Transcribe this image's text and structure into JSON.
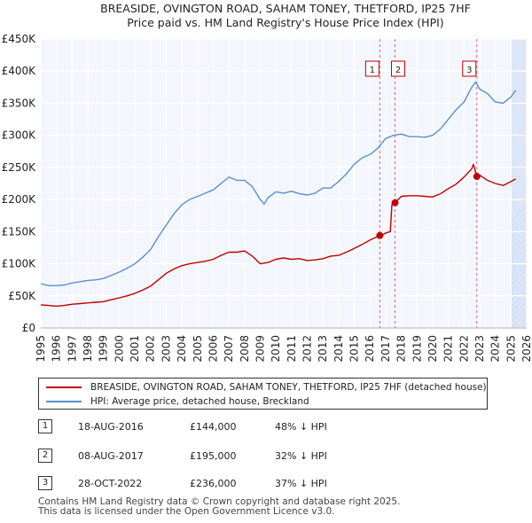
{
  "chart_data": {
    "type": "line",
    "title": "BREASIDE, OVINGTON ROAD, SAHAM TONEY, THETFORD, IP25 7HF",
    "subtitle": "Price paid vs. HM Land Registry's House Price Index (HPI)",
    "xlabel": "",
    "ylabel": "",
    "xlim": [
      1995,
      2026
    ],
    "ylim": [
      0,
      450000
    ],
    "x_ticks": [
      "1995",
      "1996",
      "1997",
      "1998",
      "1999",
      "2000",
      "2001",
      "2002",
      "2003",
      "2004",
      "2005",
      "2006",
      "2007",
      "2008",
      "2009",
      "2010",
      "2011",
      "2012",
      "2013",
      "2014",
      "2015",
      "2016",
      "2017",
      "2018",
      "2019",
      "2020",
      "2021",
      "2022",
      "2023",
      "2024",
      "2025",
      "2026"
    ],
    "y_ticks": [
      {
        "value": 0,
        "label": "£0"
      },
      {
        "value": 50000,
        "label": "£50K"
      },
      {
        "value": 100000,
        "label": "£100K"
      },
      {
        "value": 150000,
        "label": "£150K"
      },
      {
        "value": 200000,
        "label": "£200K"
      },
      {
        "value": 250000,
        "label": "£250K"
      },
      {
        "value": 300000,
        "label": "£300K"
      },
      {
        "value": 350000,
        "label": "£350K"
      },
      {
        "value": 400000,
        "label": "£400K"
      },
      {
        "value": 450000,
        "label": "£450K"
      }
    ],
    "grid": true,
    "forecast_shading_from": 2025.0,
    "series": [
      {
        "name": "HPI: Average price, detached house, Breckland",
        "color": "#5b8fd0",
        "x": [
          1995.0,
          1995.5,
          1996.0,
          1996.5,
          1997.0,
          1997.5,
          1998.0,
          1998.5,
          1999.0,
          1999.5,
          2000.0,
          2000.5,
          2001.0,
          2001.5,
          2002.0,
          2002.5,
          2003.0,
          2003.5,
          2004.0,
          2004.5,
          2005.0,
          2005.5,
          2006.0,
          2006.5,
          2007.0,
          2007.5,
          2008.0,
          2008.5,
          2009.0,
          2009.25,
          2009.5,
          2010.0,
          2010.5,
          2011.0,
          2011.5,
          2012.0,
          2012.5,
          2013.0,
          2013.5,
          2014.0,
          2014.5,
          2015.0,
          2015.5,
          2016.0,
          2016.5,
          2017.0,
          2017.5,
          2018.0,
          2018.5,
          2019.0,
          2019.5,
          2020.0,
          2020.5,
          2021.0,
          2021.5,
          2022.0,
          2022.5,
          2022.75,
          2023.0,
          2023.5,
          2024.0,
          2024.5,
          2025.0,
          2025.3
        ],
        "values": [
          69000,
          66000,
          66000,
          67000,
          70000,
          72000,
          74000,
          75000,
          77000,
          82000,
          87000,
          93000,
          100000,
          110000,
          122000,
          142000,
          160000,
          178000,
          192000,
          200000,
          205000,
          210000,
          215000,
          225000,
          235000,
          230000,
          230000,
          220000,
          200000,
          193000,
          203000,
          212000,
          210000,
          213000,
          209000,
          207000,
          210000,
          218000,
          218000,
          228000,
          240000,
          255000,
          265000,
          270000,
          280000,
          295000,
          300000,
          302000,
          298000,
          298000,
          297000,
          300000,
          310000,
          325000,
          340000,
          352000,
          375000,
          383000,
          372000,
          365000,
          352000,
          350000,
          360000,
          370000
        ]
      },
      {
        "name": "BREASIDE, OVINGTON ROAD, SAHAM TONEY, THETFORD, IP25 7HF (detached house)",
        "color": "#c00000",
        "x": [
          1995.0,
          1995.5,
          1996.0,
          1996.5,
          1997.0,
          1997.5,
          1998.0,
          1998.5,
          1999.0,
          1999.5,
          2000.0,
          2000.5,
          2001.0,
          2001.5,
          2002.0,
          2002.5,
          2003.0,
          2003.5,
          2004.0,
          2004.5,
          2005.0,
          2005.5,
          2006.0,
          2006.5,
          2007.0,
          2007.5,
          2008.0,
          2008.5,
          2009.0,
          2009.5,
          2010.0,
          2010.5,
          2011.0,
          2011.5,
          2012.0,
          2012.5,
          2013.0,
          2013.5,
          2014.0,
          2014.5,
          2015.0,
          2015.5,
          2016.0,
          2016.63,
          2016.8,
          2017.0,
          2017.3,
          2017.4,
          2017.6,
          2018.0,
          2018.5,
          2019.0,
          2019.5,
          2020.0,
          2020.5,
          2021.0,
          2021.5,
          2022.0,
          2022.5,
          2022.6,
          2022.82,
          2023.0,
          2023.5,
          2024.0,
          2024.5,
          2025.0,
          2025.3
        ],
        "values": [
          36000,
          35000,
          34000,
          35000,
          37000,
          38000,
          39000,
          40000,
          41000,
          44000,
          47000,
          50000,
          54000,
          59000,
          65000,
          75000,
          85000,
          92000,
          97000,
          100000,
          102000,
          104000,
          107000,
          113000,
          118000,
          118000,
          120000,
          112000,
          100000,
          102000,
          107000,
          109000,
          107000,
          108000,
          105000,
          106000,
          108000,
          112000,
          113000,
          118000,
          124000,
          130000,
          137000,
          144000,
          145000,
          148000,
          150000,
          192000,
          195000,
          205000,
          206000,
          206000,
          205000,
          204000,
          209000,
          217000,
          224000,
          235000,
          248000,
          255000,
          236000,
          238000,
          230000,
          225000,
          222000,
          228000,
          232000
        ]
      }
    ],
    "transactions": [
      {
        "label": "1",
        "x": 2016.63,
        "price": 144000
      },
      {
        "label": "2",
        "x": 2017.6,
        "price": 195000
      },
      {
        "label": "3",
        "x": 2022.82,
        "price": 236000
      }
    ]
  },
  "legend": {
    "property_label": "BREASIDE, OVINGTON ROAD, SAHAM TONEY, THETFORD, IP25 7HF (detached house)",
    "hpi_label": "HPI: Average price, detached house, Breckland",
    "property_color": "#c00000",
    "hpi_color": "#5b8fd0"
  },
  "table": [
    {
      "num": "1",
      "date": "18-AUG-2016",
      "price": "£144,000",
      "delta": "48% ↓ HPI"
    },
    {
      "num": "2",
      "date": "08-AUG-2017",
      "price": "£195,000",
      "delta": "32% ↓ HPI"
    },
    {
      "num": "3",
      "date": "28-OCT-2022",
      "price": "£236,000",
      "delta": "37% ↓ HPI"
    }
  ],
  "footer": {
    "line1": "Contains HM Land Registry data © Crown copyright and database right 2025.",
    "line2": "This data is licensed under the Open Government Licence v3.0."
  }
}
